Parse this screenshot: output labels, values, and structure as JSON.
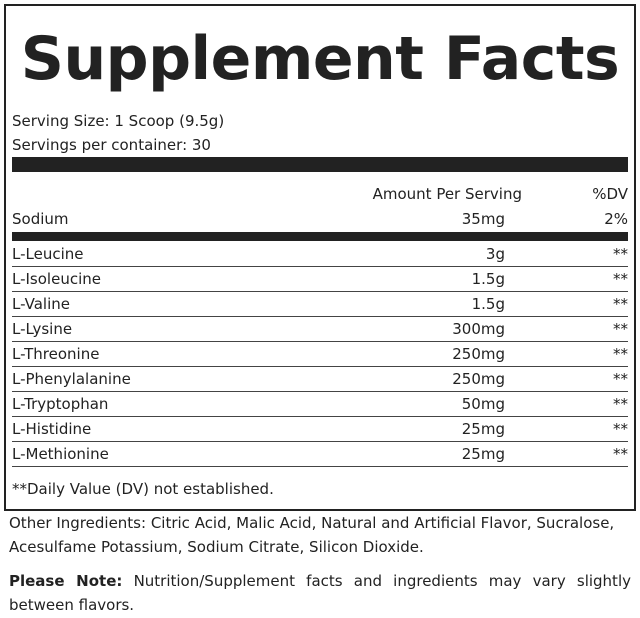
{
  "header": {
    "title": "Supplement Facts"
  },
  "serving": {
    "size": "Serving Size: 1 Scoop (9.5g)",
    "per_container": "Servings per container: 30"
  },
  "table": {
    "columns": [
      "Amount Per Serving",
      "%DV"
    ],
    "sodium": [
      "Sodium",
      "35mg",
      "2%"
    ],
    "rows": [
      [
        "L-Leucine",
        "3g",
        "**"
      ],
      [
        "L-Isoleucine",
        "1.5g",
        "**"
      ],
      [
        "L-Valine",
        "1.5g",
        "**"
      ],
      [
        "L-Lysine",
        "300mg",
        "**"
      ],
      [
        "L-Threonine",
        "250mg",
        "**"
      ],
      [
        "L-Phenylalanine",
        "250mg",
        "**"
      ],
      [
        "L-Tryptophan",
        "50mg",
        "**"
      ],
      [
        "L-Histidine",
        "25mg",
        "**"
      ],
      [
        "L-Methionine",
        "25mg",
        "**"
      ]
    ]
  },
  "footnote": "**Daily Value (DV) not established.",
  "other_ingredients": "Other Ingredients: Citric Acid, Malic Acid, Natural and Artificial Flavor, Sucralose, Acesulfame Potassium, Sodium Citrate, Silicon Dioxide.",
  "note": {
    "label": "Please Note:",
    "text": "Nutrition/Supplement facts and ingredients may vary slightly between flavors."
  }
}
